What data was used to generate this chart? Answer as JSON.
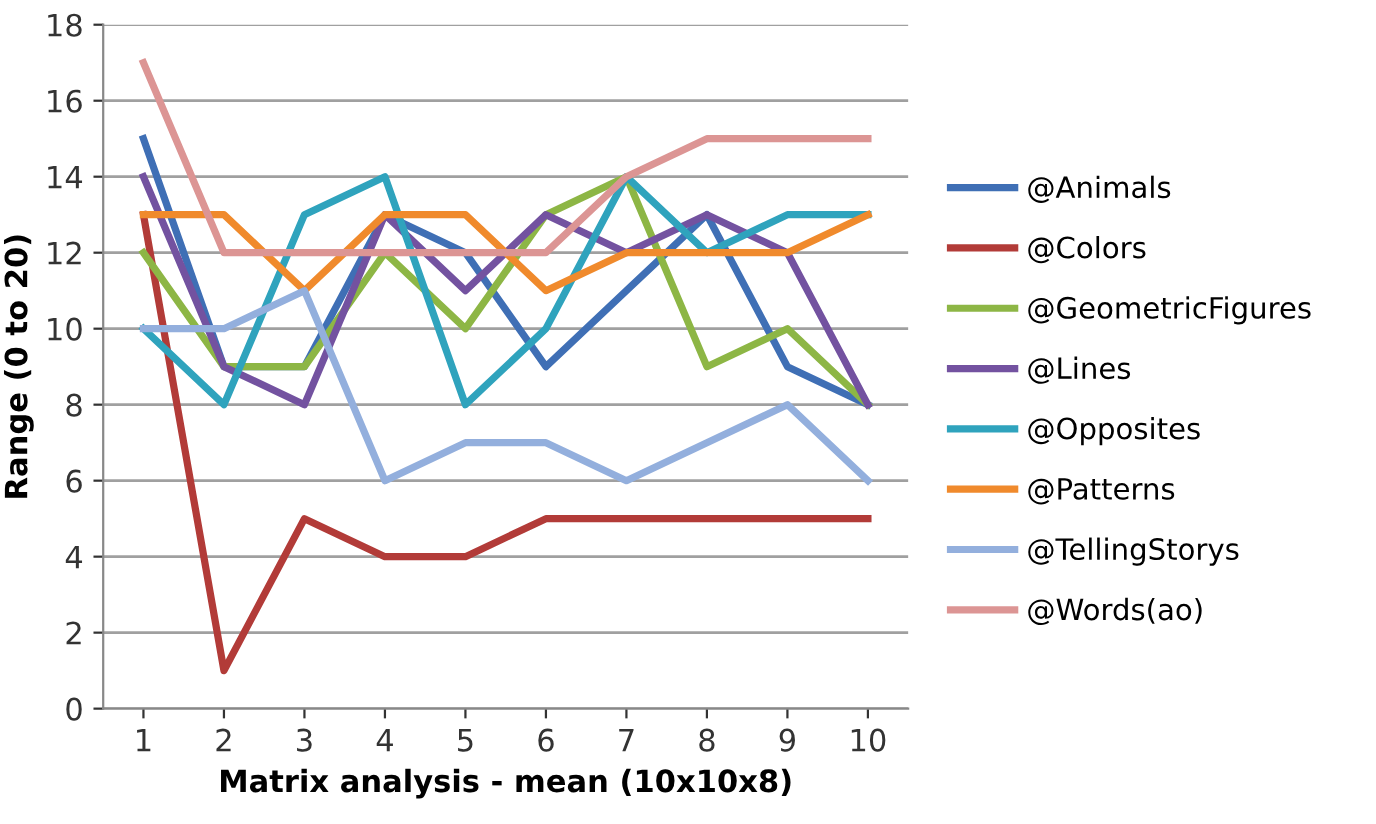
{
  "chart_data": {
    "type": "line",
    "xlabel": "Matrix analysis - mean (10x10x8)",
    "ylabel": "Range (0 to 20)",
    "categories": [
      "1",
      "2",
      "3",
      "4",
      "5",
      "6",
      "7",
      "8",
      "9",
      "10"
    ],
    "ylim": [
      0,
      18
    ],
    "yticks": [
      0,
      2,
      4,
      6,
      8,
      10,
      12,
      14,
      16,
      18
    ],
    "grid": "y",
    "legend": "right",
    "marker": "none",
    "series": [
      {
        "name": "@Animals",
        "color": "#3f6fb5",
        "values": [
          15,
          9,
          9,
          13,
          12,
          9,
          11,
          13,
          9,
          8
        ]
      },
      {
        "name": "@Colors",
        "color": "#b23b38",
        "values": [
          13,
          1,
          5,
          4,
          4,
          5,
          5,
          5,
          5,
          5
        ]
      },
      {
        "name": "@GeometricFigures",
        "color": "#8db645",
        "values": [
          12,
          9,
          9,
          12,
          10,
          13,
          14,
          9,
          10,
          8
        ]
      },
      {
        "name": "@Lines",
        "color": "#7352a0",
        "values": [
          14,
          9,
          8,
          13,
          11,
          13,
          12,
          13,
          12,
          8
        ]
      },
      {
        "name": "@Opposites",
        "color": "#2fa3bd",
        "values": [
          10,
          8,
          13,
          14,
          8,
          10,
          14,
          12,
          13,
          13
        ]
      },
      {
        "name": "@Patterns",
        "color": "#f08a2c",
        "values": [
          13,
          13,
          11,
          13,
          13,
          11,
          12,
          12,
          12,
          13
        ]
      },
      {
        "name": "@TellingStorys",
        "color": "#93afdd",
        "values": [
          10,
          10,
          11,
          6,
          7,
          7,
          6,
          7,
          8,
          6
        ]
      },
      {
        "name": "@Words(ao)",
        "color": "#dc9594",
        "values": [
          17,
          12,
          12,
          12,
          12,
          12,
          14,
          15,
          15,
          15
        ]
      }
    ]
  }
}
